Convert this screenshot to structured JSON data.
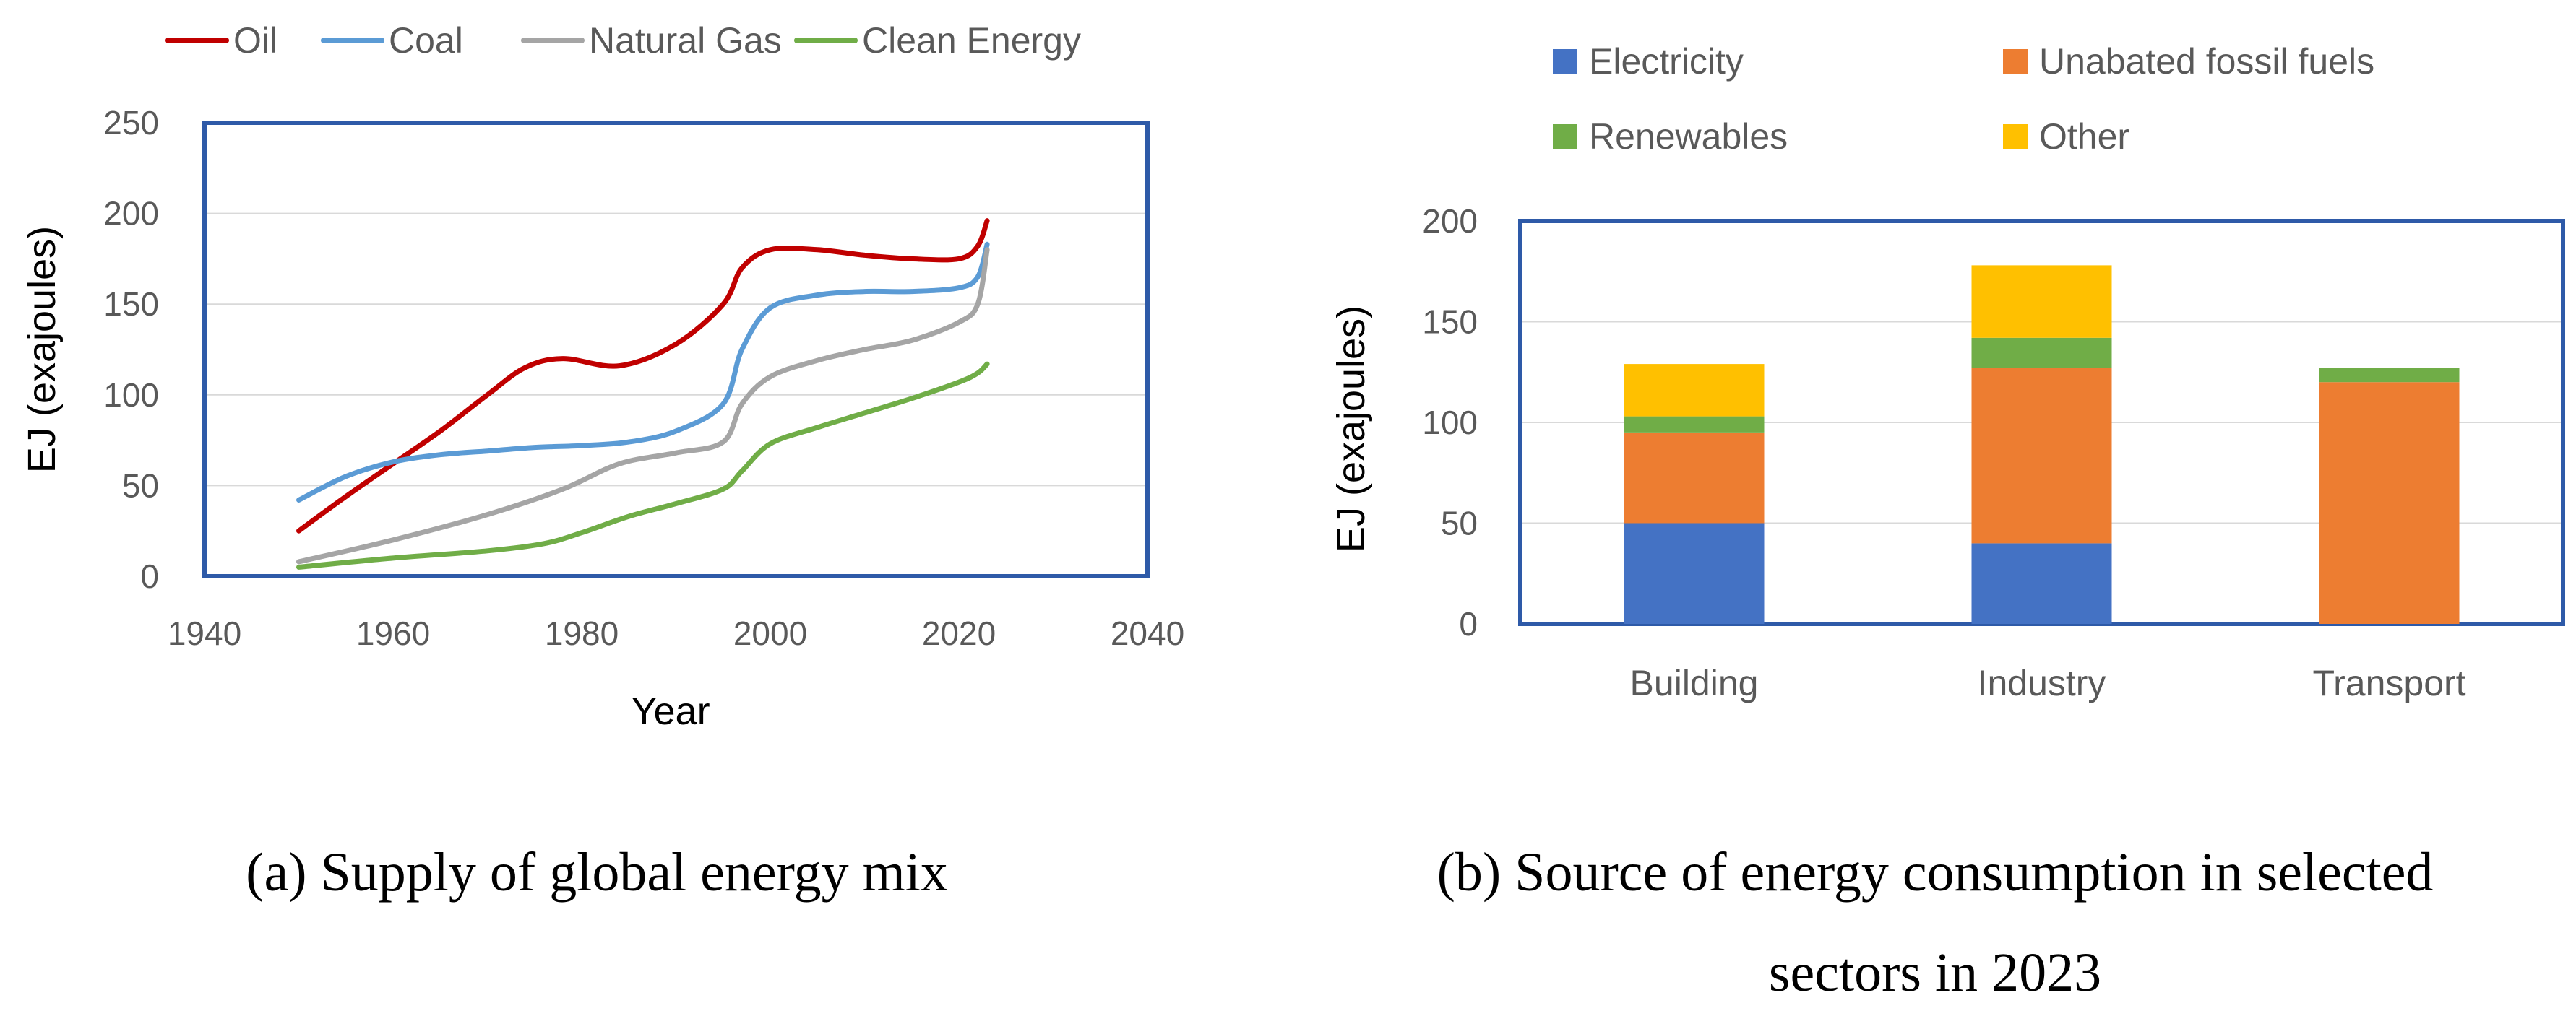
{
  "chart_data": [
    {
      "type": "line",
      "title": "",
      "xlabel": "Year",
      "ylabel": "EJ (exajoules)",
      "xlim": [
        1940,
        2040
      ],
      "ylim": [
        0,
        250
      ],
      "xticks": [
        "1940",
        "1960",
        "1980",
        "2000",
        "2020",
        "2040"
      ],
      "yticks": [
        "0",
        "50",
        "100",
        "150",
        "200",
        "250"
      ],
      "grid": "horizontal",
      "legend": "top",
      "series": [
        {
          "name": "Oil",
          "color": "#c00000",
          "points": [
            [
              1950,
              25
            ],
            [
              1955,
              44
            ],
            [
              1960,
              62
            ],
            [
              1965,
              80
            ],
            [
              1970,
              100
            ],
            [
              1974,
              115
            ],
            [
              1978,
              120
            ],
            [
              1984,
              116
            ],
            [
              1990,
              128
            ],
            [
              1995,
              150
            ],
            [
              1997,
              170
            ],
            [
              2000,
              180
            ],
            [
              2005,
              180
            ],
            [
              2010,
              177
            ],
            [
              2015,
              175
            ],
            [
              2020,
              175
            ],
            [
              2022,
              182
            ],
            [
              2023,
              196
            ]
          ]
        },
        {
          "name": "Coal",
          "color": "#5b9bd5",
          "points": [
            [
              1950,
              42
            ],
            [
              1955,
              55
            ],
            [
              1960,
              63
            ],
            [
              1965,
              67
            ],
            [
              1970,
              69
            ],
            [
              1975,
              71
            ],
            [
              1980,
              72
            ],
            [
              1985,
              74
            ],
            [
              1990,
              80
            ],
            [
              1995,
              95
            ],
            [
              1997,
              125
            ],
            [
              2000,
              148
            ],
            [
              2005,
              155
            ],
            [
              2010,
              157
            ],
            [
              2015,
              157
            ],
            [
              2020,
              159
            ],
            [
              2022,
              165
            ],
            [
              2023,
              183
            ]
          ]
        },
        {
          "name": "Natural Gas",
          "color": "#a5a5a5",
          "points": [
            [
              1950,
              8
            ],
            [
              1960,
              20
            ],
            [
              1970,
              34
            ],
            [
              1978,
              48
            ],
            [
              1984,
              62
            ],
            [
              1990,
              68
            ],
            [
              1995,
              74
            ],
            [
              1997,
              95
            ],
            [
              2000,
              110
            ],
            [
              2005,
              119
            ],
            [
              2010,
              125
            ],
            [
              2015,
              130
            ],
            [
              2020,
              140
            ],
            [
              2022,
              150
            ],
            [
              2023,
              180
            ]
          ]
        },
        {
          "name": "Clean Energy",
          "color": "#70ad47",
          "points": [
            [
              1950,
              5
            ],
            [
              1960,
              10
            ],
            [
              1970,
              14
            ],
            [
              1976,
              18
            ],
            [
              1980,
              24
            ],
            [
              1985,
              33
            ],
            [
              1990,
              40
            ],
            [
              1995,
              48
            ],
            [
              1997,
              58
            ],
            [
              2000,
              73
            ],
            [
              2005,
              82
            ],
            [
              2010,
              90
            ],
            [
              2015,
              98
            ],
            [
              2020,
              107
            ],
            [
              2022,
              112
            ],
            [
              2023,
              117
            ]
          ]
        }
      ],
      "caption": "(a) Supply of global energy mix"
    },
    {
      "type": "bar",
      "stacked": true,
      "title": "",
      "xlabel": "",
      "ylabel": "EJ (exajoules)",
      "ylim": [
        0,
        200
      ],
      "yticks": [
        "0",
        "50",
        "100",
        "150",
        "200"
      ],
      "grid": "horizontal",
      "legend": "top",
      "categories": [
        "Building",
        "Industry",
        "Transport"
      ],
      "series": [
        {
          "name": "Electricity",
          "color": "#4472c4",
          "values": [
            50,
            40,
            0
          ]
        },
        {
          "name": "Unabated fossil fuels",
          "color": "#ed7d31",
          "values": [
            45,
            87,
            120
          ]
        },
        {
          "name": "Renewables",
          "color": "#70ad47",
          "values": [
            8,
            15,
            7
          ]
        },
        {
          "name": "Other",
          "color": "#ffc000",
          "values": [
            26,
            36,
            0
          ]
        }
      ],
      "caption_line1": "(b) Source of energy consumption in selected",
      "caption_line2": "sectors in 2023"
    }
  ]
}
